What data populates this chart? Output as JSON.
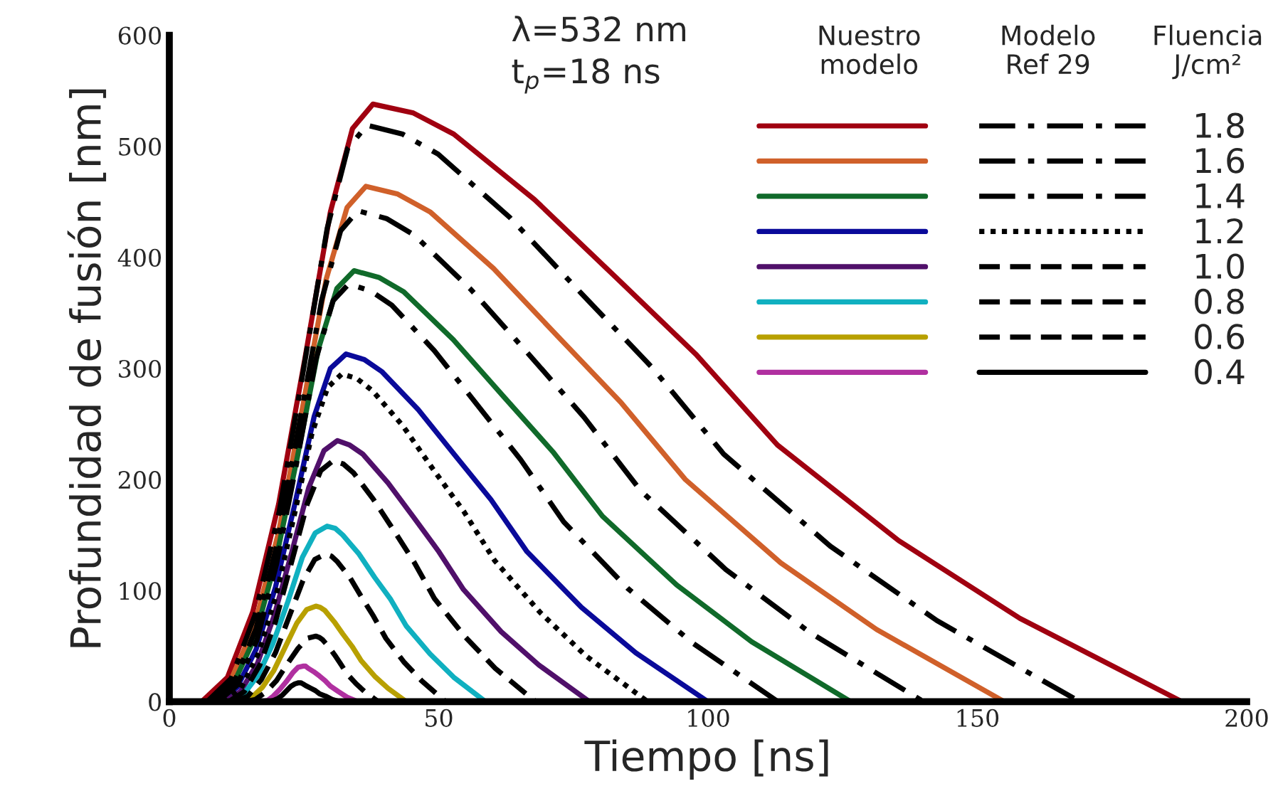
{
  "chart_data": {
    "type": "line",
    "xlabel": "Tiempo [ns]",
    "ylabel": "Profundidad de fusión [nm]",
    "annotations": [
      "λ=532 nm",
      "t$_{p}$=18 ns",
      "Nuestro\nmodelo",
      "Modelo\nRef 29",
      "Fluencia\nJ/cm²"
    ],
    "xlim": [
      0,
      200
    ],
    "xticks": [
      0,
      50,
      100,
      150,
      200
    ],
    "ylim": [
      0,
      600
    ],
    "yticks": [
      0,
      100,
      200,
      300,
      400,
      500,
      600
    ],
    "grid": false,
    "legend": "top right",
    "series": [
      {
        "color": "#a00010",
        "line_style": "solid",
        "x": [
          6,
          10.8,
          15.5,
          20.3,
          25.1,
          29.9,
          34.0,
          37.8,
          45.3,
          52.8,
          67.8,
          82.9,
          97.9,
          112.9,
          135.4,
          157.9,
          188
        ],
        "values": [
          0,
          22,
          81,
          178,
          307,
          441,
          516,
          538,
          530,
          511,
          452,
          382,
          312,
          231,
          145,
          75,
          0
        ]
      },
      {
        "color": "#d0602a",
        "line_style": "solid",
        "x": [
          7,
          11.4,
          15.9,
          20.3,
          24.7,
          29.1,
          33.0,
          36.5,
          42.4,
          48.4,
          60.2,
          72.1,
          83.9,
          95.8,
          113.5,
          131.3,
          155
        ],
        "values": [
          0,
          19,
          70,
          153,
          264,
          380,
          445,
          464,
          457,
          441,
          390,
          329,
          269,
          200,
          125,
          65,
          0
        ]
      },
      {
        "color": "#106a2a",
        "line_style": "solid",
        "x": [
          8,
          11.9,
          15.9,
          19.8,
          23.8,
          27.7,
          31.1,
          34.3,
          38.9,
          43.5,
          52.7,
          62.0,
          71.2,
          80.4,
          94.2,
          108.1,
          126.5
        ],
        "values": [
          0,
          16,
          58,
          128,
          221,
          318,
          372,
          388,
          382,
          369,
          326,
          275,
          225,
          167,
          105,
          54,
          0
        ]
      },
      {
        "color": "#0a0a9a",
        "line_style": "solid",
        "x": [
          9,
          12.6,
          16.1,
          19.7,
          23.3,
          26.9,
          29.9,
          32.8,
          36.2,
          39.5,
          46.2,
          53.0,
          59.7,
          66.4,
          76.5,
          86.6,
          100
        ],
        "values": [
          0,
          13,
          47,
          103,
          178,
          257,
          300,
          313,
          308,
          297,
          263,
          222,
          182,
          135,
          85,
          44,
          0
        ]
      },
      {
        "color": "#50106a",
        "line_style": "solid",
        "x": [
          10,
          13.2,
          16.4,
          19.5,
          22.7,
          25.9,
          28.7,
          31.2,
          33.5,
          35.9,
          40.6,
          45.2,
          49.9,
          54.6,
          61.6,
          68.6,
          78
        ],
        "values": [
          0,
          9,
          35,
          78,
          134,
          193,
          226,
          235,
          231,
          223,
          197,
          167,
          136,
          101,
          63,
          33,
          0
        ]
      },
      {
        "color": "#10b0c0",
        "line_style": "solid",
        "x": [
          11,
          13.7,
          16.5,
          19.2,
          22.0,
          24.7,
          27.1,
          29.3,
          30.8,
          32.2,
          35.2,
          38.1,
          41.1,
          44.0,
          48.4,
          52.8,
          58.7
        ],
        "values": [
          0,
          6,
          24,
          52,
          90,
          130,
          152,
          158,
          156,
          150,
          133,
          112,
          92,
          68,
          43,
          22,
          0
        ]
      },
      {
        "color": "#b8a000",
        "line_style": "solid",
        "x": [
          13,
          15.1,
          17.3,
          19.4,
          21.5,
          23.7,
          25.5,
          27.2,
          28.0,
          28.9,
          30.6,
          32.2,
          33.9,
          35.6,
          38.1,
          40.6,
          44
        ],
        "values": [
          0,
          3,
          13,
          28,
          49,
          71,
          83,
          86,
          85,
          82,
          72,
          61,
          50,
          37,
          23,
          12,
          0
        ]
      },
      {
        "color": "#b030a0",
        "line_style": "solid",
        "x": [
          17,
          18.2,
          19.3,
          20.5,
          21.7,
          22.9,
          23.9,
          24.8,
          25.3,
          25.8,
          26.8,
          27.9,
          28.9,
          29.9,
          31.4,
          33.0,
          35
        ],
        "values": [
          0,
          1,
          5,
          11,
          18,
          26,
          31,
          32,
          32,
          30,
          27,
          23,
          19,
          14,
          9,
          4,
          0
        ]
      },
      {
        "name": "1.8",
        "color": "#000000",
        "line_style": "dashdot",
        "x": [
          7,
          11.5,
          15.9,
          20.4,
          24.8,
          29.3,
          33.1,
          36.7,
          43.3,
          49.9,
          63.2,
          76.4,
          89.6,
          102.9,
          122.7,
          142.5,
          169
        ],
        "values": [
          0,
          21,
          78,
          171,
          296,
          426,
          498,
          519,
          511,
          493,
          436,
          368,
          301,
          223,
          140,
          73,
          0
        ]
      },
      {
        "name": "1.6",
        "color": "#000000",
        "line_style": "dashdot",
        "x": [
          8,
          12.1,
          16.1,
          20.2,
          24.2,
          28.3,
          31.8,
          35,
          40.3,
          45.5,
          56,
          66.5,
          77,
          87.5,
          103.3,
          119,
          140
        ],
        "values": [
          0,
          18,
          66,
          146,
          252,
          362,
          424,
          442,
          435,
          420,
          371,
          314,
          256,
          190,
          119,
          62,
          0
        ]
      },
      {
        "name": "1.4",
        "color": "#000000",
        "line_style": "dashdot",
        "x": [
          9,
          12.6,
          16.3,
          19.9,
          23.6,
          27.2,
          30.4,
          33.3,
          37.3,
          41.3,
          49.2,
          57.2,
          65.2,
          73.2,
          85.1,
          97.1,
          113
        ],
        "values": [
          0,
          15,
          56,
          124,
          214,
          308,
          361,
          376,
          370,
          357,
          316,
          267,
          218,
          162,
          102,
          53,
          0
        ]
      },
      {
        "name": "1.2",
        "color": "#000000",
        "line_style": "dotted",
        "x": [
          10,
          13.3,
          16.6,
          19.9,
          23.2,
          26.5,
          29.4,
          32,
          34.8,
          37.7,
          43.4,
          49.0,
          54.7,
          60.4,
          68.9,
          77.4,
          88.8
        ],
        "values": [
          0,
          12,
          44,
          97,
          168,
          242,
          283,
          295,
          291,
          280,
          248,
          209,
          171,
          127,
          80,
          41,
          0
        ]
      },
      {
        "name": "1.0",
        "color": "#000000",
        "line_style": "dashed",
        "x": [
          11,
          13.9,
          16.8,
          19.7,
          22.6,
          25.6,
          28.1,
          30.4,
          32.3,
          34.2,
          37.9,
          41.7,
          45.4,
          49.2,
          54.8,
          60.5,
          68
        ],
        "values": [
          0,
          9,
          33,
          72,
          124,
          178,
          208,
          217,
          214,
          206,
          182,
          154,
          126,
          93,
          59,
          30,
          0
        ]
      },
      {
        "name": "0.8",
        "color": "#000000",
        "line_style": "dashed",
        "x": [
          12,
          14.6,
          17.1,
          19.7,
          22.2,
          24.8,
          27.0,
          29,
          30.1,
          31.2,
          33.5,
          35.7,
          37.9,
          40.2,
          43.5,
          46.8,
          51.3
        ],
        "values": [
          0,
          5,
          20,
          44,
          76,
          109,
          128,
          133,
          131,
          126,
          112,
          94,
          77,
          57,
          36,
          19,
          0
        ]
      },
      {
        "name": "0.6",
        "color": "#000000",
        "line_style": "dashed",
        "x": [
          14,
          16.0,
          18.0,
          19.9,
          21.9,
          23.9,
          25.6,
          27.2,
          27.8,
          28.4,
          29.5,
          30.7,
          31.8,
          33.0,
          34.7,
          36.5,
          38.8
        ],
        "values": [
          0,
          2,
          9,
          19,
          34,
          48,
          57,
          59,
          58,
          56,
          50,
          42,
          34,
          25,
          16,
          8,
          0
        ]
      },
      {
        "name": "0.4",
        "color": "#000000",
        "line_style": "solid",
        "x": [
          18.5,
          19.3,
          20.2,
          21.0,
          21.8,
          22.6,
          23.3,
          24,
          24.4,
          24.8,
          25.5,
          26.3,
          27.1,
          27.9,
          29.0,
          30.2,
          31.7
        ],
        "values": [
          0,
          1,
          3,
          6,
          10,
          14,
          16,
          17,
          17,
          16,
          14,
          12,
          10,
          7,
          5,
          2,
          0
        ]
      }
    ]
  }
}
